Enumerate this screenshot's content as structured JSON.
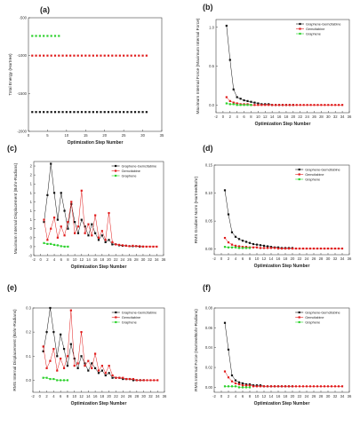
{
  "colors": {
    "graphene_gemcitabine": "#111111",
    "gemcitabine": "#e01b1b",
    "graphene": "#2bd12b"
  },
  "chart_data": [
    {
      "panel": "(a)",
      "type": "scatter",
      "xlabel": "Optimization Step Number",
      "ylabel": "Total Energy (Hartree)",
      "xlim": [
        0,
        35
      ],
      "ylim": [
        -2000,
        -500
      ],
      "xticks": [
        0,
        5,
        10,
        15,
        20,
        25,
        30,
        35
      ],
      "yticks": [
        -2000,
        -1500,
        -1000,
        -500
      ],
      "legend": false,
      "series": [
        {
          "key": "graphene_gemcitabine",
          "x": [
            1,
            2,
            3,
            4,
            5,
            6,
            7,
            8,
            9,
            10,
            11,
            12,
            13,
            14,
            15,
            16,
            17,
            18,
            19,
            20,
            21,
            22,
            23,
            24,
            25,
            26,
            27,
            28,
            29,
            30,
            31
          ],
          "y": [
            -1745,
            -1745,
            -1745,
            -1745,
            -1745,
            -1745,
            -1745,
            -1745,
            -1745,
            -1745,
            -1745,
            -1745,
            -1745,
            -1745,
            -1745,
            -1745,
            -1745,
            -1745,
            -1745,
            -1745,
            -1745,
            -1745,
            -1745,
            -1745,
            -1745,
            -1745,
            -1745,
            -1745,
            -1745,
            -1745,
            -1745
          ]
        },
        {
          "key": "gemcitabine",
          "x": [
            1,
            2,
            3,
            4,
            5,
            6,
            7,
            8,
            9,
            10,
            11,
            12,
            13,
            14,
            15,
            16,
            17,
            18,
            19,
            20,
            21,
            22,
            23,
            24,
            25,
            26,
            27,
            28,
            29,
            30,
            31
          ],
          "y": [
            -1000,
            -1000,
            -1000,
            -1000,
            -1000,
            -1000,
            -1000,
            -1000,
            -1000,
            -1000,
            -1000,
            -1000,
            -1000,
            -1000,
            -1000,
            -1000,
            -1000,
            -1000,
            -1000,
            -1000,
            -1000,
            -1000,
            -1000,
            -1000,
            -1000,
            -1000,
            -1000,
            -1000,
            -1000,
            -1000,
            -1000
          ]
        },
        {
          "key": "graphene",
          "x": [
            1,
            2,
            3,
            4,
            5,
            6,
            7,
            8
          ],
          "y": [
            -740,
            -740,
            -740,
            -740,
            -740,
            -740,
            -740,
            -740
          ]
        }
      ]
    },
    {
      "panel": "(b)",
      "type": "line",
      "xlabel": "Optimization Step Number",
      "ylabel": "Maximum Internal Force (Maximum Internal Force)",
      "xlim": [
        -2,
        36
      ],
      "ylim": [
        -0.1,
        1.1
      ],
      "xticks": [
        -2,
        0,
        2,
        4,
        6,
        8,
        10,
        12,
        14,
        16,
        18,
        20,
        22,
        24,
        26,
        28,
        30,
        32,
        34,
        36
      ],
      "yticks": [
        0.0,
        0.5,
        1.0
      ],
      "legend": true,
      "series": [
        {
          "name": "Graphene-Gemcitabine",
          "key": "graphene_gemcitabine",
          "x": [
            1,
            2,
            3,
            4,
            5,
            6,
            7,
            8,
            9,
            10,
            11,
            12,
            13,
            14,
            15,
            16,
            17,
            18,
            19,
            20
          ],
          "y": [
            1.02,
            0.58,
            0.2,
            0.1,
            0.08,
            0.06,
            0.05,
            0.04,
            0.03,
            0.02,
            0.01,
            0.01,
            0.01,
            0,
            0,
            0,
            0,
            0,
            0,
            0
          ]
        },
        {
          "name": "Gemcitabine",
          "key": "gemcitabine",
          "x": [
            1,
            2,
            3,
            4,
            5,
            6,
            7,
            8,
            9,
            10,
            11,
            12,
            13,
            14,
            15,
            16,
            17,
            18,
            19,
            20,
            21,
            22,
            23,
            24,
            25,
            26,
            27,
            28,
            29,
            30,
            31,
            32,
            33,
            34
          ],
          "y": [
            0.1,
            0.05,
            0.03,
            0.02,
            0.01,
            0.01,
            0.01,
            0,
            0,
            0,
            0,
            0,
            0,
            0,
            0,
            0,
            0,
            0,
            0,
            0,
            0,
            0,
            0,
            0,
            0,
            0,
            0,
            0,
            0,
            0,
            0,
            0,
            0,
            0
          ]
        },
        {
          "name": "Graphene",
          "key": "graphene",
          "x": [
            1,
            2,
            3,
            4,
            5,
            6,
            7,
            8
          ],
          "y": [
            0.02,
            0.01,
            0.01,
            0,
            0,
            0,
            0,
            0
          ]
        }
      ]
    },
    {
      "panel": "(c)",
      "type": "line",
      "xlabel": "Optimization Step Number",
      "ylabel": "Maximum Internal Displacement (Bohr-Radians)",
      "xlim": [
        -2,
        36
      ],
      "ylim": [
        -0.2,
        1.9
      ],
      "xticks": [
        -2,
        0,
        2,
        4,
        6,
        8,
        10,
        12,
        14,
        16,
        18,
        20,
        22,
        24,
        26,
        28,
        30,
        32,
        34,
        36
      ],
      "yticks": [
        -0.2,
        0.0,
        0.2,
        0.4,
        0.6,
        0.8,
        1.0,
        1.2,
        1.4,
        1.6,
        1.8
      ],
      "legend": true,
      "series": [
        {
          "name": "Graphene-Gemcitabine",
          "key": "graphene_gemcitabine",
          "x": [
            1,
            2,
            3,
            4,
            5,
            6,
            7,
            8,
            9,
            10,
            11,
            12,
            13,
            14,
            15,
            16,
            17,
            18,
            19,
            20,
            21,
            22,
            23,
            24,
            25,
            26,
            27,
            28,
            29,
            30
          ],
          "y": [
            0.55,
            1.15,
            1.85,
            1.2,
            0.6,
            1.2,
            0.8,
            0.4,
            0.95,
            0.55,
            0.3,
            0.6,
            0.45,
            0.25,
            0.5,
            0.3,
            0.15,
            0.25,
            0.1,
            0.15,
            0.05,
            0.05,
            0.03,
            0.02,
            0.02,
            0.01,
            0.01,
            0.01,
            0,
            0
          ]
        },
        {
          "name": "Gemcitabine",
          "key": "gemcitabine",
          "x": [
            1,
            2,
            3,
            4,
            5,
            6,
            7,
            8,
            9,
            10,
            11,
            12,
            13,
            14,
            15,
            16,
            17,
            18,
            19,
            20,
            21,
            22,
            23,
            24,
            25,
            26,
            27,
            28,
            29,
            30,
            31,
            32,
            33,
            34
          ],
          "y": [
            0.6,
            0.15,
            0.4,
            0.65,
            0.2,
            0.45,
            0.25,
            0.55,
            1.0,
            0.3,
            0.45,
            1.25,
            0.3,
            0.5,
            0.25,
            0.7,
            0.2,
            0.35,
            0.15,
            0.75,
            0.1,
            0.05,
            0.04,
            0.03,
            0.02,
            0.01,
            0.02,
            0.01,
            0.01,
            0,
            0,
            0,
            0,
            0
          ]
        },
        {
          "name": "Graphene",
          "key": "graphene",
          "x": [
            1,
            2,
            3,
            4,
            5,
            6,
            7,
            8
          ],
          "y": [
            0.08,
            0.06,
            0.06,
            0.04,
            0.03,
            0.01,
            0,
            0
          ]
        }
      ]
    },
    {
      "panel": "(d)",
      "type": "line",
      "xlabel": "Optimization Step Number",
      "ylabel": "RMS Gradient Norm (Hartree/Bohr)",
      "xlim": [
        -2,
        36
      ],
      "ylim": [
        -0.01,
        0.15
      ],
      "xticks": [
        -2,
        0,
        2,
        4,
        6,
        8,
        10,
        12,
        14,
        16,
        18,
        20,
        22,
        24,
        26,
        28,
        30,
        32,
        34,
        36
      ],
      "yticks": [
        0.0,
        0.05,
        0.1,
        0.15
      ],
      "legend": true,
      "series": [
        {
          "name": "Graphene-Gemcitabine",
          "key": "graphene_gemcitabine",
          "x": [
            1,
            2,
            3,
            4,
            5,
            6,
            7,
            8,
            9,
            10,
            11,
            12,
            13,
            14,
            15,
            16,
            17,
            18,
            19,
            20
          ],
          "y": [
            0.105,
            0.062,
            0.03,
            0.022,
            0.018,
            0.015,
            0.013,
            0.011,
            0.009,
            0.008,
            0.007,
            0.006,
            0.005,
            0.004,
            0.003,
            0.003,
            0.002,
            0.002,
            0.002,
            0.002
          ]
        },
        {
          "name": "Gemcitabine",
          "key": "gemcitabine",
          "x": [
            1,
            2,
            3,
            4,
            5,
            6,
            7,
            8,
            9,
            10,
            11,
            12,
            13,
            14,
            15,
            16,
            17,
            18,
            19,
            20,
            21,
            22,
            23,
            24,
            25,
            26,
            27,
            28,
            29,
            30,
            31,
            32,
            33,
            34
          ],
          "y": [
            0.02,
            0.012,
            0.008,
            0.006,
            0.005,
            0.004,
            0.004,
            0.003,
            0.003,
            0.003,
            0.002,
            0.002,
            0.002,
            0.002,
            0.002,
            0.001,
            0.001,
            0.001,
            0.001,
            0.001,
            0.001,
            0.001,
            0.001,
            0.001,
            0.001,
            0.001,
            0.001,
            0.001,
            0.001,
            0.001,
            0.001,
            0.001,
            0.001,
            0.001
          ]
        },
        {
          "name": "Graphene",
          "key": "graphene",
          "x": [
            1,
            2,
            3,
            4,
            5,
            6,
            7,
            8
          ],
          "y": [
            0.004,
            0.003,
            0.003,
            0.003,
            0.002,
            0.002,
            0.002,
            0.002
          ]
        }
      ]
    },
    {
      "panel": "(e)",
      "type": "line",
      "xlabel": "Optimization Step Number",
      "ylabel": "RMS Internal Displacement (Bohr-Radians)",
      "xlim": [
        -2,
        36
      ],
      "ylim": [
        -0.05,
        0.3
      ],
      "xticks": [
        -2,
        0,
        2,
        4,
        6,
        8,
        10,
        12,
        14,
        16,
        18,
        20,
        22,
        24,
        26,
        28,
        30,
        32,
        34,
        36
      ],
      "yticks": [
        0.0,
        0.1,
        0.2,
        0.3
      ],
      "legend": true,
      "series": [
        {
          "name": "Graphene-Gemcitabine",
          "key": "graphene_gemcitabine",
          "x": [
            1,
            2,
            3,
            4,
            5,
            6,
            7,
            8,
            9,
            10,
            11,
            12,
            13,
            14,
            15,
            16,
            17,
            18,
            19,
            20,
            21,
            22,
            23,
            24,
            25,
            26,
            27,
            28,
            29,
            30
          ],
          "y": [
            0.12,
            0.2,
            0.3,
            0.2,
            0.1,
            0.19,
            0.13,
            0.06,
            0.15,
            0.09,
            0.05,
            0.1,
            0.07,
            0.04,
            0.07,
            0.05,
            0.03,
            0.04,
            0.02,
            0.03,
            0.01,
            0.01,
            0.01,
            0.005,
            0.005,
            0.005,
            0,
            0,
            0,
            0
          ]
        },
        {
          "name": "Gemcitabine",
          "key": "gemcitabine",
          "x": [
            1,
            2,
            3,
            4,
            5,
            6,
            7,
            8,
            9,
            10,
            11,
            12,
            13,
            14,
            15,
            16,
            17,
            18,
            19,
            20,
            21,
            22,
            23,
            24,
            25,
            26,
            27,
            28,
            29,
            30,
            31,
            32,
            33,
            34
          ],
          "y": [
            0.14,
            0.05,
            0.08,
            0.13,
            0.04,
            0.09,
            0.05,
            0.1,
            0.29,
            0.06,
            0.07,
            0.2,
            0.06,
            0.08,
            0.05,
            0.11,
            0.04,
            0.06,
            0.03,
            0.06,
            0.02,
            0.01,
            0.01,
            0.01,
            0.005,
            0.005,
            0.005,
            0,
            0,
            0,
            0,
            0,
            0,
            0
          ]
        },
        {
          "name": "Graphene",
          "key": "graphene",
          "x": [
            1,
            2,
            3,
            4,
            5,
            6,
            7,
            8
          ],
          "y": [
            0.01,
            0.01,
            0.005,
            0.005,
            0,
            0,
            0,
            0
          ]
        }
      ]
    },
    {
      "panel": "(f)",
      "type": "line",
      "xlabel": "Optimization Step Number",
      "ylabel": "RMS Internal Force (Hartree/Bohr-Radians)",
      "xlim": [
        -2,
        36
      ],
      "ylim": [
        -0.005,
        0.08
      ],
      "xticks": [
        -2,
        0,
        2,
        4,
        6,
        8,
        10,
        12,
        14,
        16,
        18,
        20,
        22,
        24,
        26,
        28,
        30,
        32,
        34,
        36
      ],
      "yticks": [
        0.0,
        0.02,
        0.04,
        0.06,
        0.08
      ],
      "legend": true,
      "series": [
        {
          "name": "Graphene-Gemcitabine",
          "key": "graphene_gemcitabine",
          "x": [
            1,
            2,
            3,
            4,
            5,
            6,
            7,
            8,
            9,
            10,
            11,
            12,
            13,
            14,
            15,
            16,
            17,
            18,
            19,
            20
          ],
          "y": [
            0.065,
            0.038,
            0.012,
            0.007,
            0.005,
            0.004,
            0.003,
            0.003,
            0.002,
            0.002,
            0.002,
            0.001,
            0.001,
            0.001,
            0.001,
            0.001,
            0.001,
            0.001,
            0.001,
            0.001
          ]
        },
        {
          "name": "Gemcitabine",
          "key": "gemcitabine",
          "x": [
            1,
            2,
            3,
            4,
            5,
            6,
            7,
            8,
            9,
            10,
            11,
            12,
            13,
            14,
            15,
            16,
            17,
            18,
            19,
            20,
            21,
            22,
            23,
            24,
            25,
            26,
            27,
            28,
            29,
            30,
            31,
            32,
            33,
            34
          ],
          "y": [
            0.016,
            0.01,
            0.006,
            0.004,
            0.003,
            0.002,
            0.002,
            0.002,
            0.001,
            0.001,
            0.001,
            0.001,
            0.001,
            0.001,
            0.001,
            0.001,
            0.001,
            0.001,
            0.001,
            0.001,
            0.001,
            0.001,
            0.001,
            0.001,
            0.001,
            0.001,
            0.001,
            0.001,
            0.001,
            0.001,
            0.001,
            0.001,
            0.001,
            0.001
          ]
        },
        {
          "name": "Graphene",
          "key": "graphene",
          "x": [
            1,
            2,
            3,
            4,
            5,
            6,
            7,
            8
          ],
          "y": [
            0.001,
            0.001,
            0.001,
            0.001,
            0,
            0,
            0,
            0
          ]
        }
      ]
    }
  ]
}
